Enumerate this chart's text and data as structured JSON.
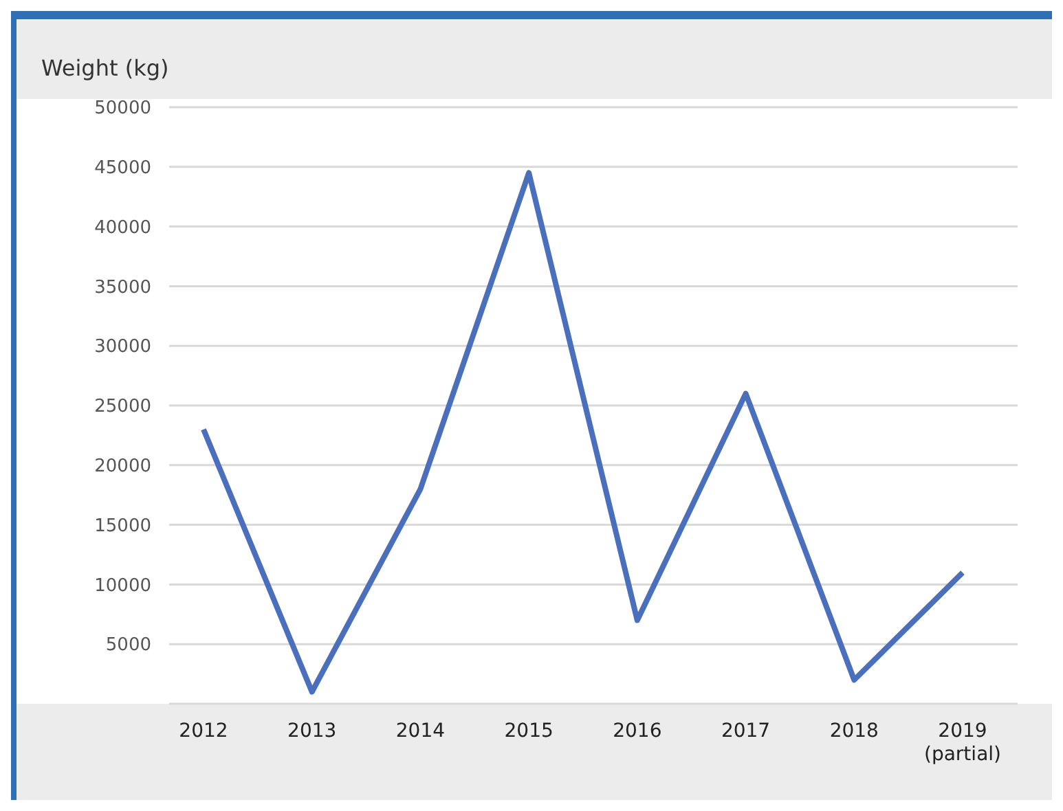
{
  "chart_data": {
    "type": "line",
    "ylabel": "Weight (kg)",
    "categories": [
      "2012",
      "2013",
      "2014",
      "2015",
      "2016",
      "2017",
      "2018",
      "2019\n(partial)"
    ],
    "series": [
      {
        "color": "#4a6fbd",
        "values": [
          23000,
          1000,
          18000,
          44500,
          7000,
          26000,
          2000,
          11000
        ]
      }
    ],
    "ylim": [
      0,
      50000
    ],
    "yticks": [
      {
        "value": 0,
        "label": null
      },
      5000,
      10000,
      15000,
      20000,
      25000,
      30000,
      35000,
      40000,
      45000,
      50000
    ],
    "grid": "y",
    "marker": "none",
    "line_style": "solid"
  }
}
